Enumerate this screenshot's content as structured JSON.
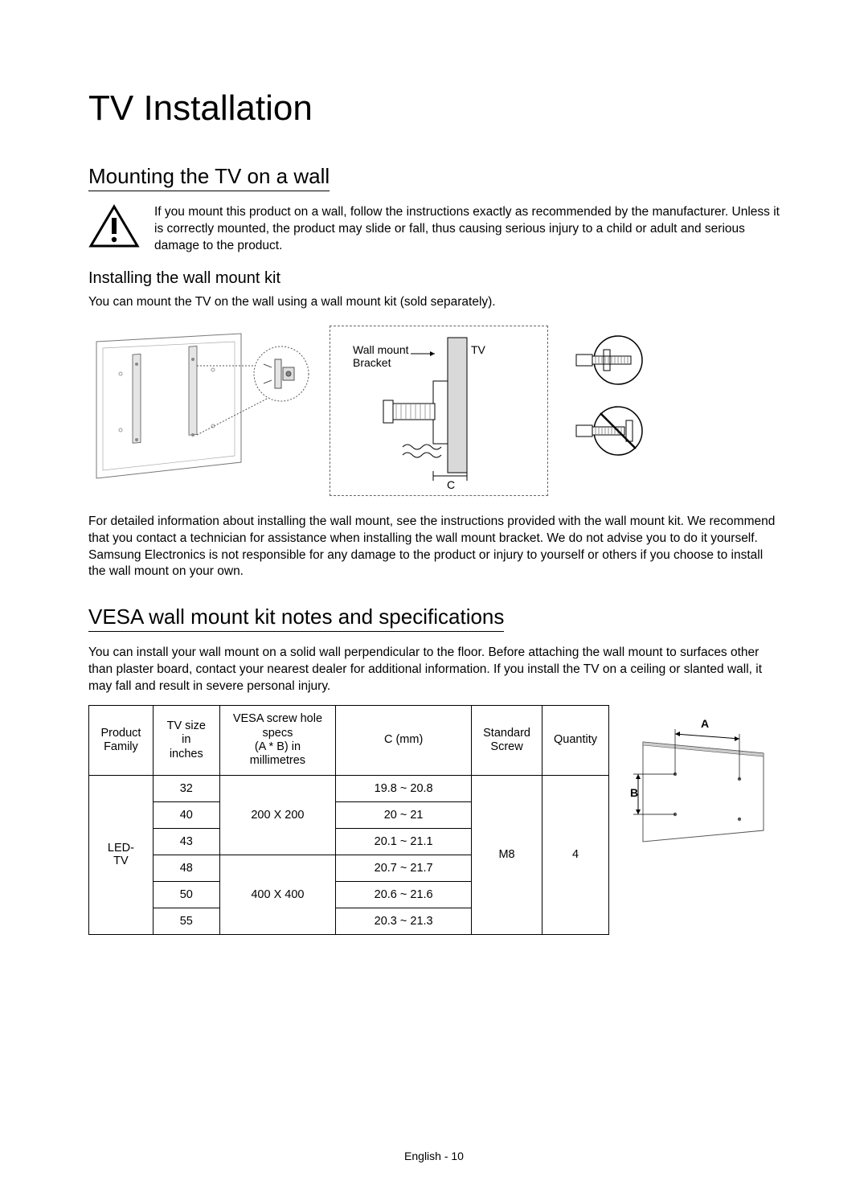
{
  "page": {
    "title": "TV Installation",
    "footer": "English - 10"
  },
  "section1": {
    "heading": "Mounting the TV on a wall",
    "warning": "If you mount this product on a wall, follow the instructions exactly as recommended by the manufacturer. Unless it is correctly mounted, the product may slide or fall, thus causing serious injury to a child or adult and serious damage to the product.",
    "sub_heading": "Installing the wall mount kit",
    "sub_text": "You can mount the TV on the wall using a wall mount kit (sold separately).",
    "after_diag": "For detailed information about installing the wall mount, see the instructions provided with the wall mount kit. We recommend that you contact a technician for assistance when installing the wall mount bracket. We do not advise you to do it yourself. Samsung Electronics is not responsible for any damage to the product or injury to yourself or others if you choose to install the wall mount on your own."
  },
  "diagram": {
    "label_bracket": "Wall mount Bracket",
    "label_tv": "TV",
    "label_c": "C"
  },
  "section2": {
    "heading": "VESA wall mount kit notes and specifications",
    "intro": "You can install your wall mount on a solid wall perpendicular to the floor. Before attaching the wall mount to surfaces other than plaster board, contact your nearest dealer for additional information. If you install the TV on a ceiling or slanted wall, it may fall and result in severe personal injury."
  },
  "table": {
    "columns": {
      "family": "Product\nFamily",
      "size": "TV size in\ninches",
      "vesa": "VESA screw hole specs\n(A * B) in millimetres",
      "c": "C (mm)",
      "screw": "Standard\nScrew",
      "qty": "Quantity"
    },
    "family_value": "LED-TV",
    "screw_value": "M8",
    "qty_value": "4",
    "vesa_groups": [
      "200 X 200",
      "400 X 400"
    ],
    "rows": [
      {
        "size": "32",
        "c": "19.8 ~ 20.8"
      },
      {
        "size": "40",
        "c": "20 ~ 21"
      },
      {
        "size": "43",
        "c": "20.1 ~ 21.1"
      },
      {
        "size": "48",
        "c": "20.7 ~ 21.7"
      },
      {
        "size": "50",
        "c": "20.6 ~ 21.6"
      },
      {
        "size": "55",
        "c": "20.3 ~ 21.3"
      }
    ],
    "sketch_labels": {
      "a": "A",
      "b": "B"
    }
  },
  "colors": {
    "text": "#000000",
    "border": "#000000",
    "dashed": "#666666",
    "fill_gray": "#d9d9d9"
  }
}
